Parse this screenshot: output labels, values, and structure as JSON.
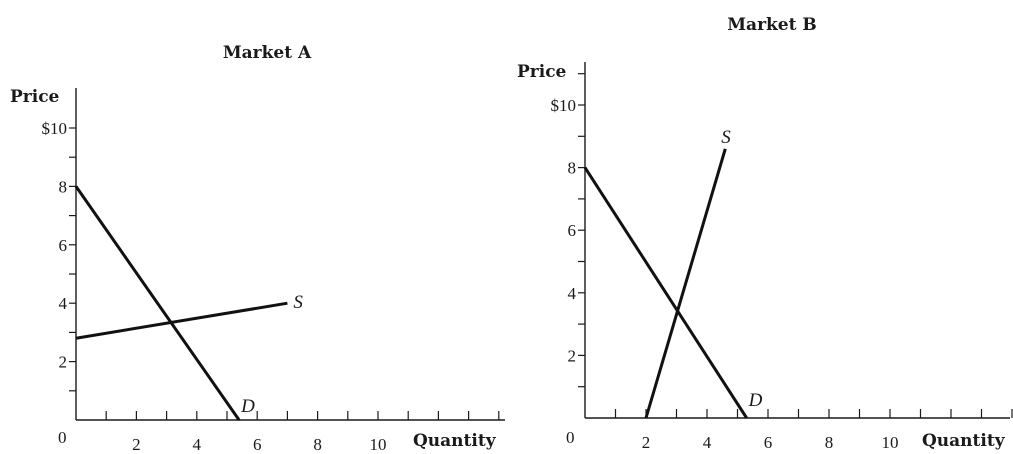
{
  "chart_data": [
    {
      "type": "line",
      "title": "Market A",
      "ylabel": "Price",
      "xlabel": "Quantity",
      "origin_label": "0",
      "xlim": [
        0,
        14
      ],
      "ylim": [
        0,
        10.8
      ],
      "x_ticks": [
        2,
        4,
        6,
        8,
        10
      ],
      "y_ticks": [
        2,
        4,
        6,
        8,
        10
      ],
      "y_tick_labels": [
        "2",
        "4",
        "6",
        "8",
        "$10"
      ],
      "grid": false,
      "series": [
        {
          "name": "D",
          "x": [
            0,
            5.4
          ],
          "y": [
            8,
            0
          ]
        },
        {
          "name": "S",
          "x": [
            0,
            7
          ],
          "y": [
            2.8,
            4
          ]
        }
      ]
    },
    {
      "type": "line",
      "title": "Market B",
      "ylabel": "Price",
      "xlabel": "Quantity",
      "origin_label": "0",
      "xlim": [
        0,
        14
      ],
      "ylim": [
        0,
        11.2
      ],
      "x_ticks": [
        2,
        4,
        6,
        8,
        10
      ],
      "y_ticks": [
        2,
        4,
        6,
        8,
        10
      ],
      "y_tick_labels": [
        "2",
        "4",
        "6",
        "8",
        "$10"
      ],
      "grid": false,
      "series": [
        {
          "name": "D",
          "x": [
            0,
            5.3
          ],
          "y": [
            8,
            0
          ]
        },
        {
          "name": "S",
          "x": [
            2,
            4.6
          ],
          "y": [
            0,
            8.6
          ]
        }
      ]
    }
  ]
}
